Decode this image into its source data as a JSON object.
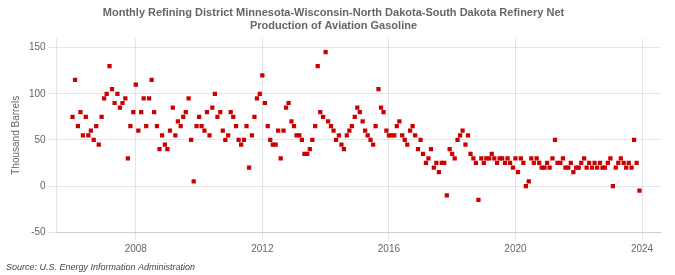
{
  "chart_data": {
    "type": "scatter",
    "title": "Monthly Refining District Minnesota-Wisconsin-North Dakota-South Dakota Refinery Net\nProduction of Aviation Gasoline",
    "ylabel": "Thousand Barrels",
    "annotation": "Source: U.S. Energy Information Administration",
    "color": "#cc0000",
    "marker": "square",
    "grid": true,
    "xlim": [
      2005.5,
      2024.6
    ],
    "xticks": [
      2008,
      2012,
      2016,
      2020,
      2024
    ],
    "ylim": [
      -50,
      160
    ],
    "yticks": [
      -50,
      0,
      50,
      100,
      150
    ],
    "x": [
      2006.0,
      2006.08,
      2006.17,
      2006.25,
      2006.33,
      2006.42,
      2006.5,
      2006.58,
      2006.67,
      2006.75,
      2006.83,
      2006.92,
      2007.0,
      2007.08,
      2007.17,
      2007.25,
      2007.33,
      2007.42,
      2007.5,
      2007.58,
      2007.67,
      2007.75,
      2007.83,
      2007.92,
      2008.0,
      2008.08,
      2008.17,
      2008.25,
      2008.33,
      2008.42,
      2008.5,
      2008.58,
      2008.67,
      2008.75,
      2008.83,
      2008.92,
      2009.0,
      2009.08,
      2009.17,
      2009.25,
      2009.33,
      2009.42,
      2009.5,
      2009.58,
      2009.67,
      2009.75,
      2009.83,
      2009.92,
      2010.0,
      2010.08,
      2010.17,
      2010.25,
      2010.33,
      2010.42,
      2010.5,
      2010.58,
      2010.67,
      2010.75,
      2010.83,
      2010.92,
      2011.0,
      2011.08,
      2011.17,
      2011.25,
      2011.33,
      2011.42,
      2011.5,
      2011.58,
      2011.67,
      2011.75,
      2011.83,
      2011.92,
      2012.0,
      2012.08,
      2012.17,
      2012.25,
      2012.33,
      2012.42,
      2012.5,
      2012.58,
      2012.67,
      2012.75,
      2012.83,
      2012.92,
      2013.0,
      2013.08,
      2013.17,
      2013.25,
      2013.33,
      2013.42,
      2013.5,
      2013.58,
      2013.67,
      2013.75,
      2013.83,
      2013.92,
      2014.0,
      2014.08,
      2014.17,
      2014.25,
      2014.33,
      2014.42,
      2014.5,
      2014.58,
      2014.67,
      2014.75,
      2014.83,
      2014.92,
      2015.0,
      2015.08,
      2015.17,
      2015.25,
      2015.33,
      2015.42,
      2015.5,
      2015.58,
      2015.67,
      2015.75,
      2015.83,
      2015.92,
      2016.0,
      2016.08,
      2016.17,
      2016.25,
      2016.33,
      2016.42,
      2016.5,
      2016.58,
      2016.67,
      2016.75,
      2016.83,
      2016.92,
      2017.0,
      2017.08,
      2017.17,
      2017.25,
      2017.33,
      2017.42,
      2017.5,
      2017.58,
      2017.67,
      2017.75,
      2017.83,
      2017.92,
      2018.0,
      2018.08,
      2018.17,
      2018.25,
      2018.33,
      2018.42,
      2018.5,
      2018.58,
      2018.67,
      2018.75,
      2018.83,
      2018.92,
      2019.0,
      2019.08,
      2019.17,
      2019.25,
      2019.33,
      2019.42,
      2019.5,
      2019.58,
      2019.67,
      2019.75,
      2019.83,
      2019.92,
      2020.0,
      2020.08,
      2020.17,
      2020.25,
      2020.33,
      2020.42,
      2020.5,
      2020.58,
      2020.67,
      2020.75,
      2020.83,
      2020.92,
      2021.0,
      2021.08,
      2021.17,
      2021.25,
      2021.33,
      2021.42,
      2021.5,
      2021.58,
      2021.67,
      2021.75,
      2021.83,
      2021.92,
      2022.0,
      2022.08,
      2022.17,
      2022.25,
      2022.33,
      2022.42,
      2022.5,
      2022.58,
      2022.67,
      2022.75,
      2022.83,
      2022.92,
      2023.0,
      2023.08,
      2023.17,
      2023.25,
      2023.33,
      2023.42,
      2023.5,
      2023.58,
      2023.67,
      2023.75,
      2023.83,
      2023.92
    ],
    "values": [
      75,
      115,
      65,
      80,
      55,
      75,
      55,
      60,
      50,
      65,
      45,
      75,
      95,
      100,
      130,
      105,
      90,
      100,
      85,
      90,
      95,
      30,
      65,
      80,
      110,
      60,
      80,
      95,
      65,
      95,
      115,
      80,
      65,
      40,
      55,
      45,
      40,
      60,
      85,
      55,
      70,
      65,
      75,
      80,
      95,
      50,
      5,
      65,
      75,
      65,
      60,
      80,
      55,
      85,
      100,
      75,
      80,
      60,
      50,
      55,
      80,
      75,
      65,
      50,
      45,
      50,
      65,
      20,
      55,
      75,
      95,
      100,
      120,
      90,
      65,
      50,
      45,
      45,
      60,
      30,
      60,
      85,
      90,
      70,
      65,
      55,
      55,
      50,
      35,
      35,
      40,
      50,
      65,
      130,
      80,
      75,
      145,
      70,
      65,
      60,
      50,
      55,
      45,
      40,
      55,
      60,
      65,
      75,
      85,
      80,
      70,
      60,
      55,
      50,
      45,
      65,
      105,
      85,
      80,
      60,
      55,
      55,
      55,
      65,
      70,
      55,
      50,
      45,
      60,
      65,
      55,
      40,
      50,
      35,
      25,
      30,
      40,
      20,
      25,
      15,
      25,
      25,
      -10,
      40,
      35,
      30,
      50,
      55,
      60,
      45,
      55,
      35,
      30,
      25,
      -15,
      30,
      25,
      30,
      30,
      35,
      30,
      25,
      30,
      30,
      25,
      30,
      25,
      20,
      30,
      15,
      30,
      25,
      0,
      5,
      30,
      25,
      30,
      25,
      20,
      20,
      25,
      20,
      30,
      50,
      25,
      25,
      30,
      20,
      20,
      25,
      15,
      20,
      20,
      25,
      30,
      20,
      25,
      20,
      25,
      20,
      25,
      20,
      20,
      25,
      30,
      0,
      20,
      25,
      30,
      25,
      20,
      25,
      20,
      50,
      25,
      -5
    ]
  }
}
